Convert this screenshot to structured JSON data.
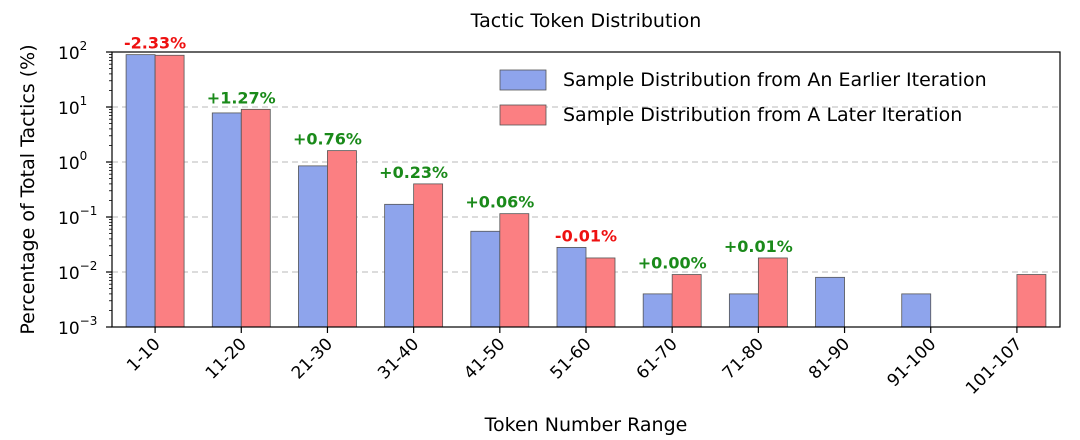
{
  "chart_data": {
    "type": "bar",
    "title": "Tactic Token Distribution",
    "xlabel": "Token Number Range",
    "ylabel": "Percentage of Total Tactics (%)",
    "yscale": "log",
    "ylim": [
      0.001,
      100
    ],
    "yticks": [
      {
        "value": 0.001,
        "base": "10",
        "exp": "−3"
      },
      {
        "value": 0.01,
        "base": "10",
        "exp": "−2"
      },
      {
        "value": 0.1,
        "base": "10",
        "exp": "−1"
      },
      {
        "value": 1,
        "base": "10",
        "exp": "0"
      },
      {
        "value": 10,
        "base": "10",
        "exp": "1"
      },
      {
        "value": 100,
        "base": "10",
        "exp": "2"
      }
    ],
    "categories": [
      "1-10",
      "11-20",
      "21-30",
      "31-40",
      "41-50",
      "51-60",
      "61-70",
      "71-80",
      "81-90",
      "91-100",
      "101-107"
    ],
    "series": [
      {
        "name": "Sample Distribution from An Earlier Iteration",
        "color": "#8ea4ec",
        "values": [
          89.5,
          7.8,
          0.85,
          0.17,
          0.055,
          0.028,
          0.004,
          0.004,
          0.008,
          0.004,
          0
        ]
      },
      {
        "name": "Sample Distribution from A Later Iteration",
        "color": "#fb7f82",
        "values": [
          87.2,
          9.07,
          1.61,
          0.4,
          0.115,
          0.018,
          0.009,
          0.018,
          0,
          0,
          0.009
        ]
      }
    ],
    "annotations": [
      "-2.33%",
      "+1.27%",
      "+0.76%",
      "+0.23%",
      "+0.06%",
      "-0.01%",
      "+0.00%",
      "+0.01%",
      "",
      "",
      ""
    ],
    "annotation_colors": {
      "positive": "#1a8a1a",
      "negative": "#ee1111"
    },
    "grid": {
      "y": true,
      "style": "dashed"
    },
    "legend_position": "top-right"
  }
}
